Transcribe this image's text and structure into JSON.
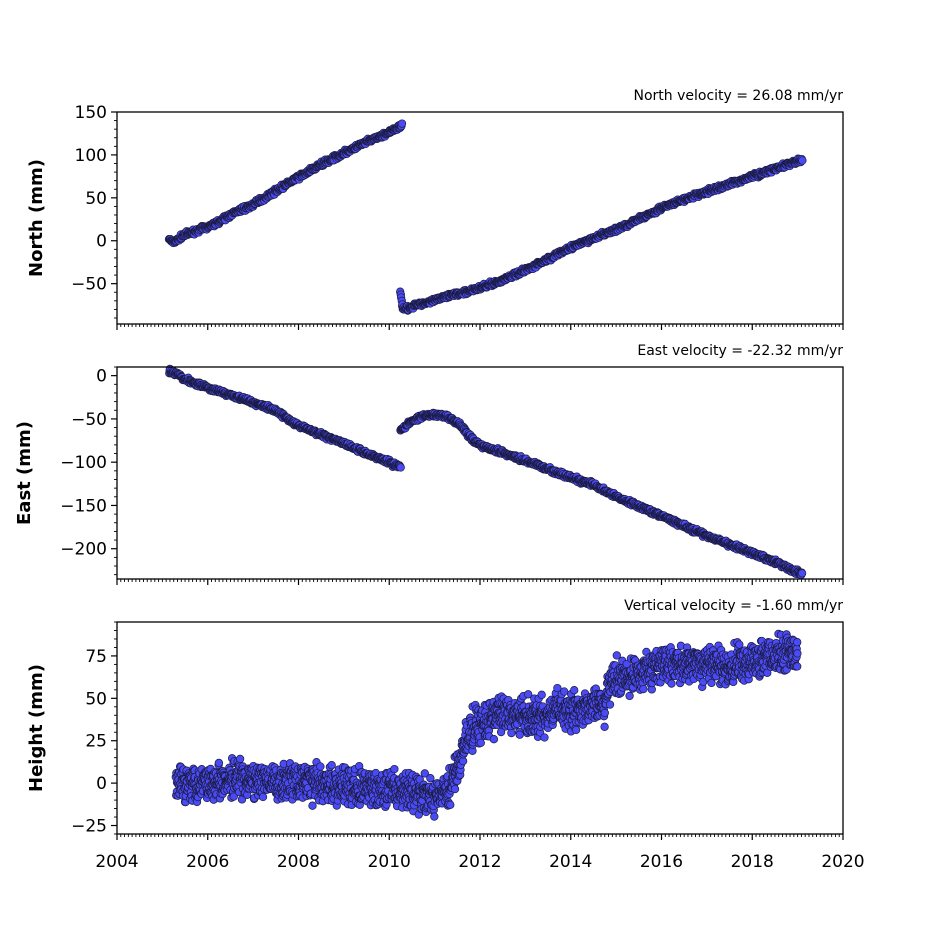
{
  "chart_data": [
    {
      "type": "scatter",
      "title": "North velocity = 26.08 mm/yr",
      "ylabel": "North (mm)",
      "xlim": [
        2004,
        2020
      ],
      "ylim": [
        -97,
        150
      ],
      "yticks": [
        150,
        100,
        50,
        0,
        -50
      ],
      "ytick_labels": [
        "150",
        "100",
        "50",
        "0",
        "−50"
      ],
      "xticks_labels_shown": false,
      "marker_color": "#4b4bf5",
      "series": [
        {
          "x": [
            2005.15,
            2005.22,
            2005.3,
            2005.38,
            2005.45,
            2005.82,
            2006.0,
            2006.3,
            2006.6,
            2007.0,
            2007.5,
            2008.0,
            2008.5,
            2009.0,
            2009.5,
            2010.0,
            2010.28
          ],
          "values": [
            2,
            -1,
            0,
            3,
            6,
            13,
            16,
            24,
            33,
            42,
            58,
            74,
            89,
            102,
            115,
            126,
            134
          ]
        },
        {
          "x": [
            2010.24,
            2010.27,
            2010.3,
            2010.4,
            2010.6,
            2011.0,
            2011.5,
            2012.0,
            2012.5,
            2013.0,
            2013.5,
            2014.0,
            2014.5,
            2015.0,
            2015.5,
            2016.0,
            2016.5,
            2017.0,
            2017.5,
            2018.0,
            2018.5,
            2019.1
          ],
          "values": [
            -58,
            -70,
            -77,
            -79,
            -75,
            -69,
            -62,
            -55,
            -46,
            -34,
            -21,
            -8,
            3,
            13,
            25,
            38,
            48,
            57,
            66,
            75,
            84,
            94
          ]
        }
      ]
    },
    {
      "type": "scatter",
      "title": "East velocity = -22.32 mm/yr",
      "ylabel": "East (mm)",
      "xlim": [
        2004,
        2020
      ],
      "ylim": [
        -235,
        10
      ],
      "yticks": [
        0,
        -50,
        -100,
        -150,
        -200
      ],
      "ytick_labels": [
        "0",
        "−50",
        "−100",
        "−150",
        "−200"
      ],
      "xticks_labels_shown": false,
      "marker_color": "#4b4bf5",
      "series": [
        {
          "x": [
            2005.15,
            2005.25,
            2005.35,
            2005.45,
            2005.8,
            2006.0,
            2006.5,
            2007.0,
            2007.5,
            2008.0,
            2008.5,
            2009.0,
            2009.5,
            2010.0,
            2010.25
          ],
          "values": [
            5,
            3,
            2,
            -3,
            -10,
            -14,
            -22,
            -31,
            -40,
            -58,
            -68,
            -78,
            -90,
            -100,
            -106
          ]
        },
        {
          "x": [
            2010.25,
            2010.35,
            2010.5,
            2010.7,
            2011.0,
            2011.3,
            2011.55,
            2011.8,
            2012.0,
            2012.5,
            2013.0,
            2013.5,
            2014.0,
            2014.5,
            2015.0,
            2015.5,
            2016.0,
            2016.5,
            2017.0,
            2017.5,
            2018.0,
            2018.5,
            2019.1
          ],
          "values": [
            -63,
            -59,
            -52,
            -48,
            -45,
            -48,
            -56,
            -72,
            -80,
            -89,
            -98,
            -108,
            -118,
            -126,
            -140,
            -151,
            -162,
            -174,
            -185,
            -195,
            -205,
            -215,
            -230
          ]
        }
      ]
    },
    {
      "type": "scatter",
      "title": "Vertical velocity = -1.60 mm/yr",
      "ylabel": "Height (mm)",
      "xlim": [
        2004,
        2020
      ],
      "ylim": [
        -30,
        95
      ],
      "yticks": [
        75,
        50,
        25,
        0,
        -25
      ],
      "ytick_labels": [
        "75",
        "50",
        "25",
        "0",
        "−25"
      ],
      "xticks": [
        2004,
        2006,
        2008,
        2010,
        2012,
        2014,
        2016,
        2018,
        2020
      ],
      "xtick_labels": [
        "2004",
        "2006",
        "2008",
        "2010",
        "2012",
        "2014",
        "2016",
        "2018",
        "2020"
      ],
      "marker_color": "#4b4bf5",
      "series": [
        {
          "x": [
            2005.3,
            2005.8,
            2006.5,
            2007.0,
            2007.5,
            2008.0,
            2008.5,
            2009.0,
            2009.5,
            2010.0,
            2010.5,
            2011.0,
            2011.3,
            2011.5,
            2011.7,
            2011.9,
            2012.2,
            2012.6,
            2013.0,
            2013.4,
            2013.8,
            2014.2,
            2014.6,
            2014.75,
            2014.85,
            2015.2,
            2015.6,
            2016.0,
            2016.5,
            2017.0,
            2017.5,
            2018.0,
            2018.5,
            2019.0
          ],
          "values": [
            0,
            1,
            2,
            1,
            1,
            2,
            0,
            -2,
            -3,
            -3,
            -6,
            -8,
            -5,
            10,
            25,
            33,
            38,
            42,
            38,
            40,
            43,
            45,
            46,
            45,
            60,
            63,
            66,
            70,
            70,
            70,
            68,
            72,
            75,
            77
          ]
        }
      ]
    }
  ]
}
